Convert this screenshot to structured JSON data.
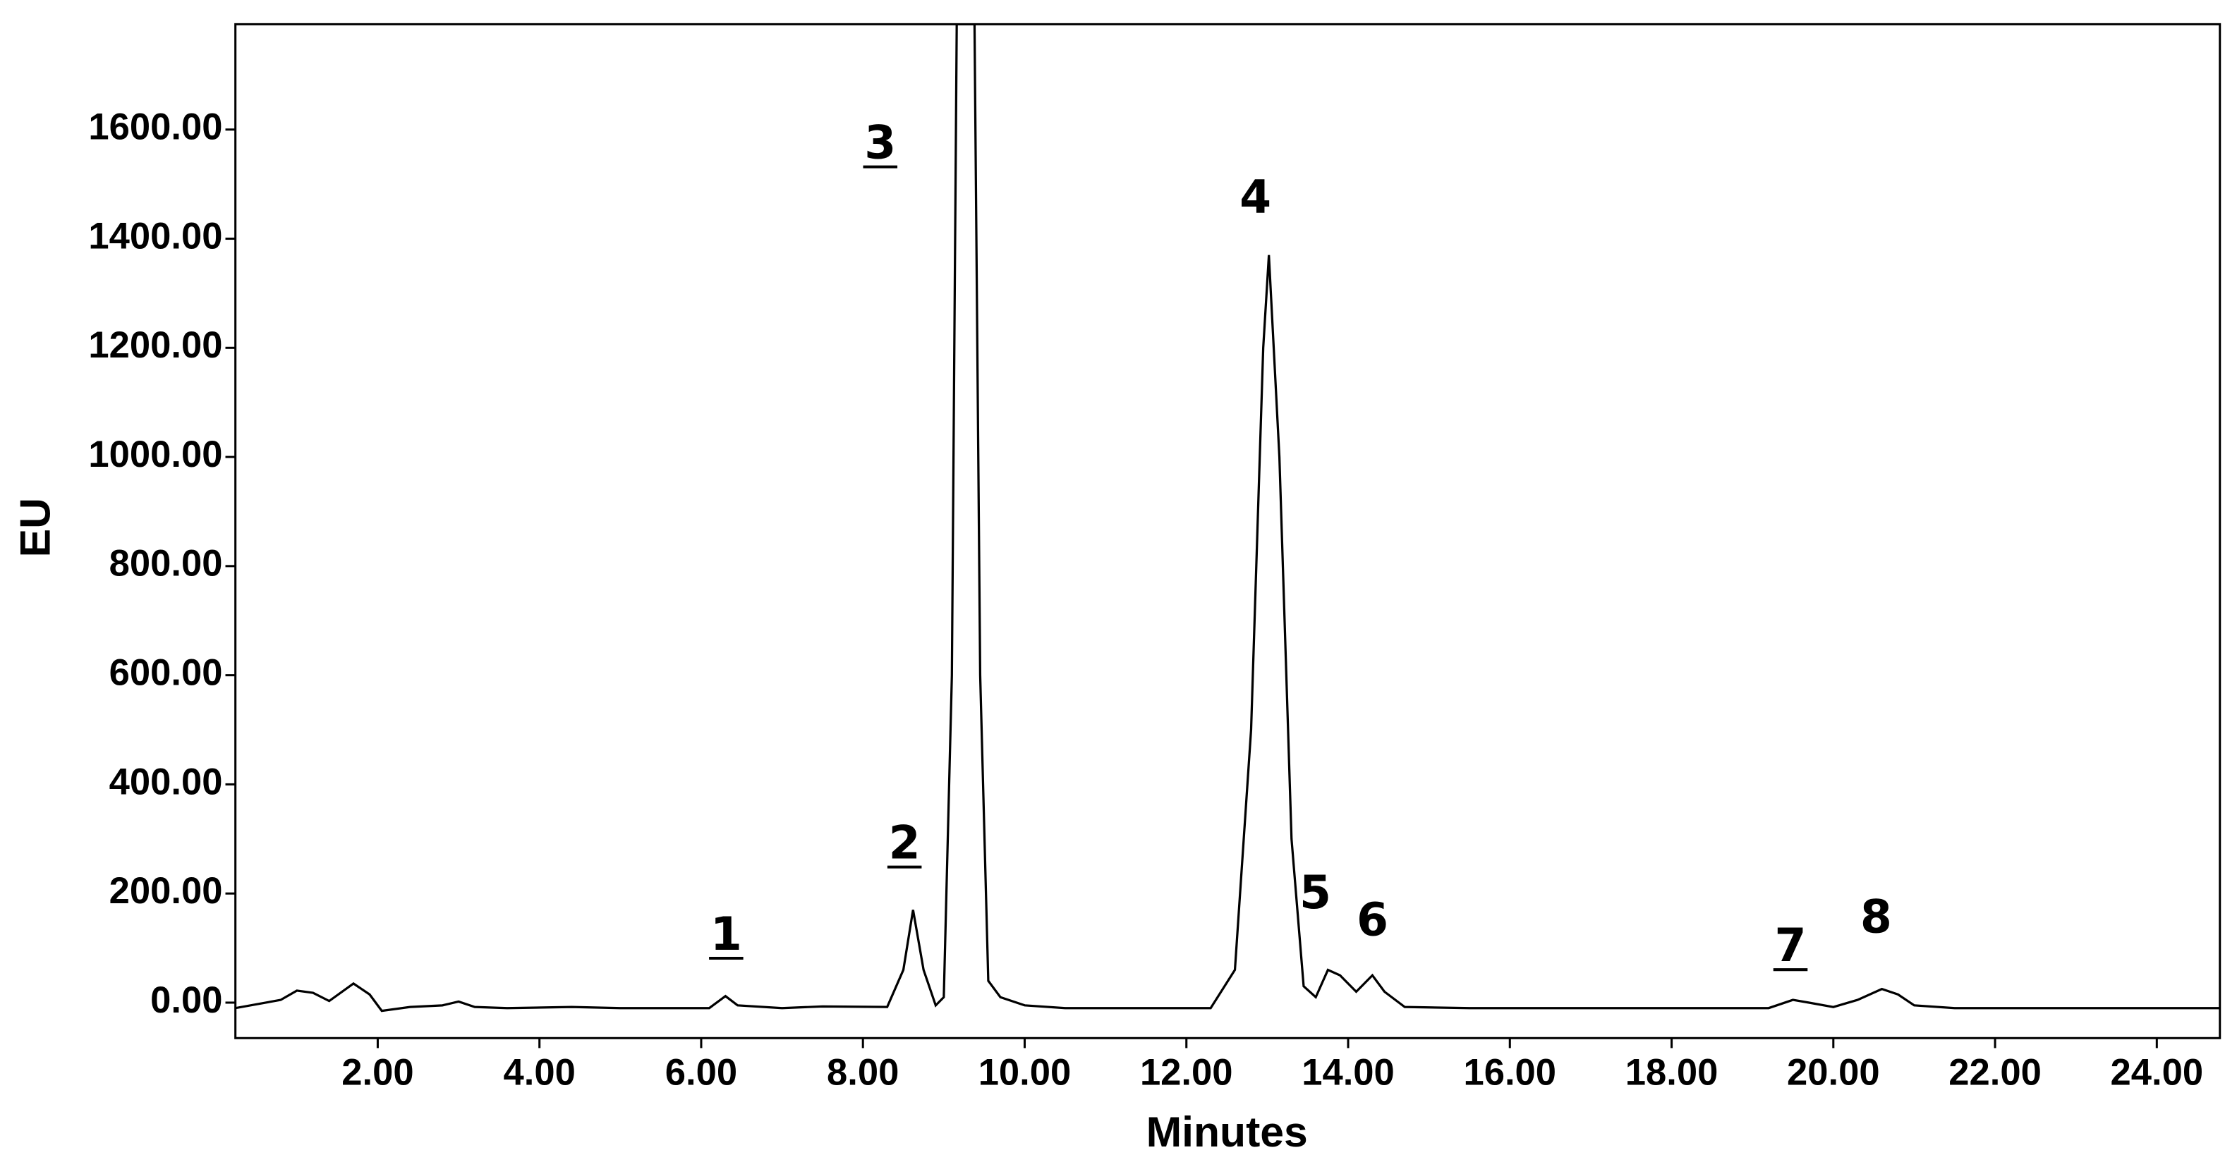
{
  "chart_data": {
    "type": "line",
    "x_label": "Minutes",
    "y_label": "EU",
    "color": "#000000",
    "xlim": [
      0.24,
      24.78
    ],
    "ylim": [
      -65,
      1793
    ],
    "xticks": [
      {
        "value": 2,
        "label": "2.00"
      },
      {
        "value": 4,
        "label": "4.00"
      },
      {
        "value": 6,
        "label": "6.00"
      },
      {
        "value": 8,
        "label": "8.00"
      },
      {
        "value": 10,
        "label": "10.00"
      },
      {
        "value": 12,
        "label": "12.00"
      },
      {
        "value": 14,
        "label": "14.00"
      },
      {
        "value": 16,
        "label": "16.00"
      },
      {
        "value": 18,
        "label": "18.00"
      },
      {
        "value": 20,
        "label": "20.00"
      },
      {
        "value": 22,
        "label": "22.00"
      },
      {
        "value": 24,
        "label": "24.00"
      }
    ],
    "yticks": [
      {
        "value": 0,
        "label": "0.00"
      },
      {
        "value": 200,
        "label": "200.00"
      },
      {
        "value": 400,
        "label": "400.00"
      },
      {
        "value": 600,
        "label": "600.00"
      },
      {
        "value": 800,
        "label": "800.00"
      },
      {
        "value": 1000,
        "label": "1000.00"
      },
      {
        "value": 1200,
        "label": "1200.00"
      },
      {
        "value": 1400,
        "label": "1400.00"
      },
      {
        "value": 1600,
        "label": "1600.00"
      }
    ],
    "x": [
      0.24,
      0.8,
      1.0,
      1.2,
      1.4,
      1.7,
      1.9,
      2.05,
      2.4,
      2.8,
      3.0,
      3.2,
      3.6,
      4.4,
      5.0,
      6.1,
      6.3,
      6.45,
      7.0,
      7.5,
      8.3,
      8.5,
      8.62,
      8.75,
      8.9,
      9.0,
      9.1,
      9.16,
      9.38,
      9.45,
      9.55,
      9.7,
      10.0,
      10.5,
      12.3,
      12.6,
      12.8,
      12.95,
      13.02,
      13.15,
      13.3,
      13.45,
      13.6,
      13.75,
      13.9,
      14.1,
      14.3,
      14.45,
      14.7,
      15.5,
      19.2,
      19.5,
      19.7,
      20.0,
      20.3,
      20.6,
      20.8,
      21.0,
      21.5,
      24.78
    ],
    "values": [
      -10,
      5,
      22,
      18,
      3,
      35,
      15,
      -15,
      -8,
      -5,
      2,
      -8,
      -10,
      -8,
      -10,
      -10,
      12,
      -5,
      -10,
      -7,
      -8,
      60,
      170,
      60,
      -5,
      10,
      600,
      1793,
      1793,
      600,
      40,
      10,
      -5,
      -10,
      -10,
      60,
      500,
      1200,
      1370,
      1000,
      300,
      30,
      10,
      60,
      50,
      20,
      50,
      20,
      -8,
      -10,
      -10,
      5,
      0,
      -8,
      5,
      25,
      15,
      -5,
      -10,
      -10
    ],
    "annotations": [
      {
        "text": "1",
        "underline": true
      },
      {
        "text": "2",
        "underline": true
      },
      {
        "text": "3",
        "underline": true
      },
      {
        "text": "4",
        "underline": false
      },
      {
        "text": "5",
        "underline": false
      },
      {
        "text": "6",
        "underline": false
      },
      {
        "text": "7",
        "underline": true
      },
      {
        "text": "8",
        "underline": false
      }
    ]
  }
}
